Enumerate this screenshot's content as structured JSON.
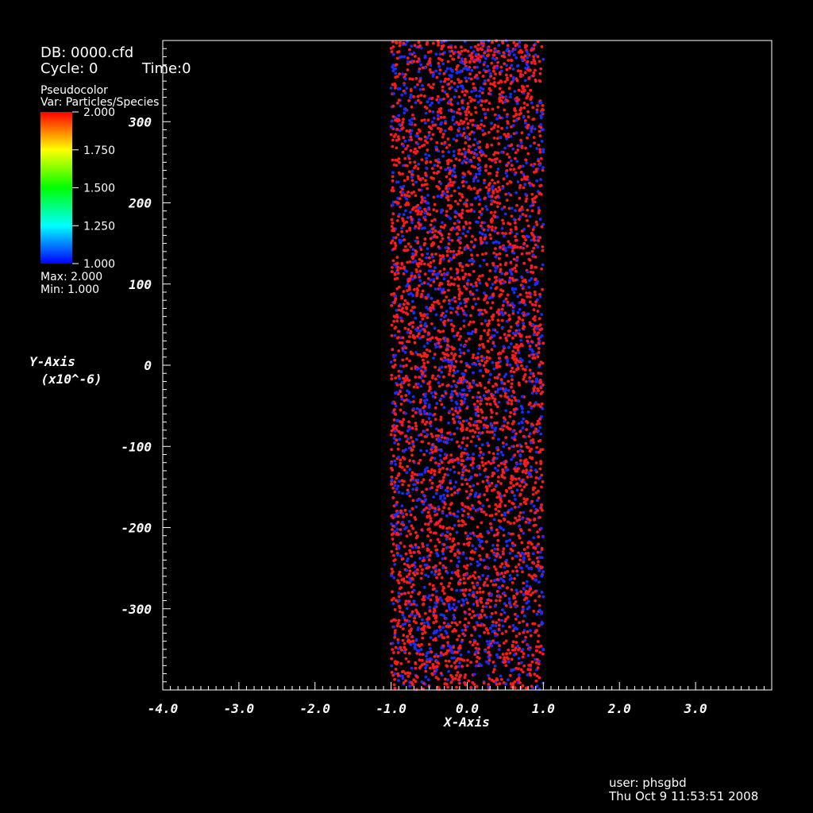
{
  "header": {
    "db": "DB: 0000.cfd",
    "cycle": "Cycle: 0",
    "time": "Time:0"
  },
  "legend": {
    "plot_type": "Pseudocolor",
    "variable": "Var: Particles/Species",
    "ticks": [
      "2.000",
      "1.750",
      "1.500",
      "1.250",
      "1.000"
    ],
    "tick_values": [
      2.0,
      1.75,
      1.5,
      1.25,
      1.0
    ],
    "max_label": "Max:  2.000",
    "min_label": "Min:  1.000",
    "colormap": [
      "#0000ff",
      "#00ffff",
      "#00ff00",
      "#ffff00",
      "#ff0000"
    ]
  },
  "footer": {
    "user": "user: phsgbd",
    "date": "Thu Oct  9 11:53:51 2008"
  },
  "colors": {
    "background": "#000000",
    "axes": "#ffffff",
    "species_1": "#1a2bff",
    "species_2": "#ff1a1a"
  },
  "chart_data": {
    "type": "scatter",
    "title": "",
    "xlabel": "X-Axis",
    "ylabel": "Y-Axis",
    "ylabel_unit": "(x10^-6)",
    "xlim": [
      -4.0,
      4.0
    ],
    "ylim": [
      -400,
      400
    ],
    "x_ticks": [
      -4.0,
      -3.0,
      -2.0,
      -1.0,
      0.0,
      1.0,
      2.0,
      3.0
    ],
    "x_tick_labels": [
      "-4.0",
      "-3.0",
      "-2.0",
      "-1.0",
      "0.0",
      "1.0",
      "2.0",
      "3.0"
    ],
    "y_ticks": [
      -300,
      -200,
      -100,
      0,
      100,
      200,
      300
    ],
    "y_tick_labels": [
      "-300",
      "-200",
      "-100",
      "0",
      "100",
      "200",
      "300"
    ],
    "particle_region": {
      "xmin": -1.0,
      "xmax": 1.0,
      "ymin": -400,
      "ymax": 400
    },
    "series": [
      {
        "species": 1,
        "color": "#1a2bff"
      },
      {
        "species": 2,
        "color": "#ff1a1a"
      }
    ],
    "grid": false,
    "legend_position": "top-left"
  }
}
